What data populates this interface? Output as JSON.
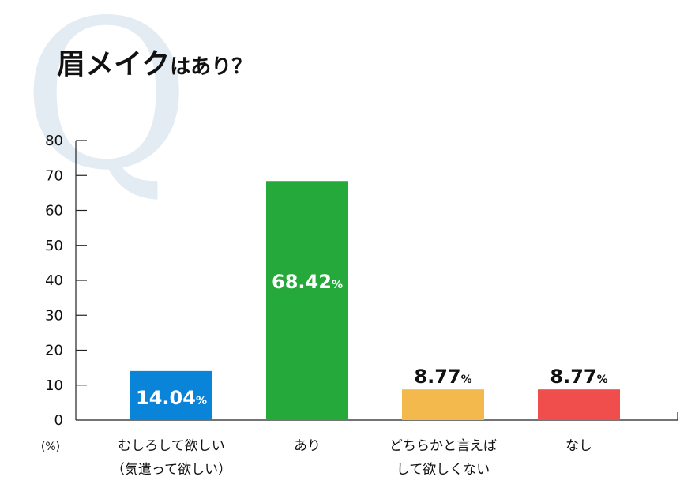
{
  "title": {
    "main": "眉メイク",
    "sub": "はあり？"
  },
  "decor": {
    "watermark": "Q",
    "watermark_color": "#e3ebf3"
  },
  "chart_data": {
    "type": "bar",
    "title": "眉メイクはあり？",
    "categories": [
      [
        "むしろして欲しい",
        "（気遣って欲しい）"
      ],
      [
        "あり"
      ],
      [
        "どちらかと言えば",
        "して欲しくない"
      ],
      [
        "なし"
      ]
    ],
    "values": [
      14.04,
      68.42,
      8.77,
      8.77
    ],
    "value_labels": [
      {
        "num": "14.04",
        "unit": "%"
      },
      {
        "num": "68.42",
        "unit": "%"
      },
      {
        "num": "8.77",
        "unit": "%"
      },
      {
        "num": "8.77",
        "unit": "%"
      }
    ],
    "colors": [
      "#0a84d8",
      "#24a93a",
      "#f3b94c",
      "#f04d4d"
    ],
    "ylim": [
      0,
      80
    ],
    "yticks": [
      "0",
      "10",
      "20",
      "30",
      "40",
      "50",
      "60",
      "70",
      "80"
    ],
    "yunit": "(%)",
    "grid": false
  }
}
